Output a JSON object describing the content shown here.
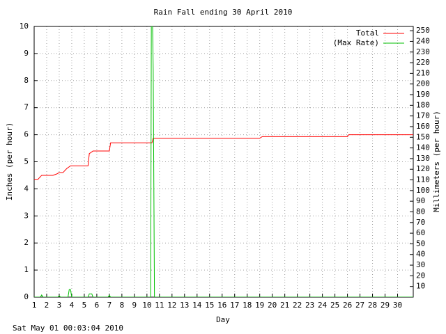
{
  "chart_data": {
    "type": "line",
    "title": "Rain Fall ending 30 April 2010",
    "x_label": "Day",
    "y_label": "Inches (per hour)",
    "y2_label": "Millimeters (per hour)",
    "footer": "Sat May 01 00:03:04 2010",
    "xlim": [
      1,
      31.25
    ],
    "xticks": [
      1,
      2,
      3,
      4,
      5,
      6,
      7,
      8,
      9,
      10,
      11,
      12,
      13,
      14,
      15,
      16,
      17,
      18,
      19,
      20,
      21,
      22,
      23,
      24,
      25,
      26,
      27,
      28,
      29,
      30
    ],
    "ylim": [
      0,
      10
    ],
    "yticks": [
      0,
      1,
      2,
      3,
      4,
      5,
      6,
      7,
      8,
      9,
      10
    ],
    "y2lim": [
      0,
      254
    ],
    "y2ticks": [
      10,
      20,
      30,
      40,
      50,
      60,
      70,
      80,
      90,
      100,
      110,
      120,
      130,
      140,
      150,
      160,
      170,
      180,
      190,
      200,
      210,
      220,
      230,
      240,
      250
    ],
    "grid": true,
    "legend": "top-right",
    "series": [
      {
        "name": "Total",
        "color": "#ff0000",
        "x": [
          1,
          1.3,
          1.6,
          2.5,
          2.8,
          3.0,
          3.3,
          3.6,
          3.9,
          5.3,
          5.4,
          5.7,
          7.0,
          7.1,
          10.4,
          10.5,
          19.0,
          19.2,
          26.0,
          26.1,
          31.25
        ],
        "values": [
          4.35,
          4.35,
          4.5,
          4.5,
          4.55,
          4.6,
          4.6,
          4.75,
          4.85,
          4.85,
          5.3,
          5.4,
          5.4,
          5.7,
          5.7,
          5.87,
          5.87,
          5.93,
          5.93,
          6.0,
          6.0
        ]
      },
      {
        "name": "(Max Rate)",
        "color": "#00c000",
        "x": [
          1,
          1.5,
          1.6,
          1.7,
          2.9,
          3.0,
          3.1,
          3.7,
          3.8,
          3.9,
          4.0,
          5.3,
          5.4,
          5.6,
          5.7,
          6.9,
          7.0,
          7.1,
          10.3,
          10.35,
          10.45,
          10.5,
          10.55,
          10.6,
          31.25
        ],
        "values": [
          0,
          0,
          0.08,
          0,
          0,
          0.05,
          0,
          0,
          0.28,
          0.28,
          0,
          0,
          0.12,
          0.12,
          0,
          0,
          0.07,
          0,
          0,
          10,
          10,
          8.4,
          4.2,
          0,
          0
        ]
      }
    ]
  }
}
